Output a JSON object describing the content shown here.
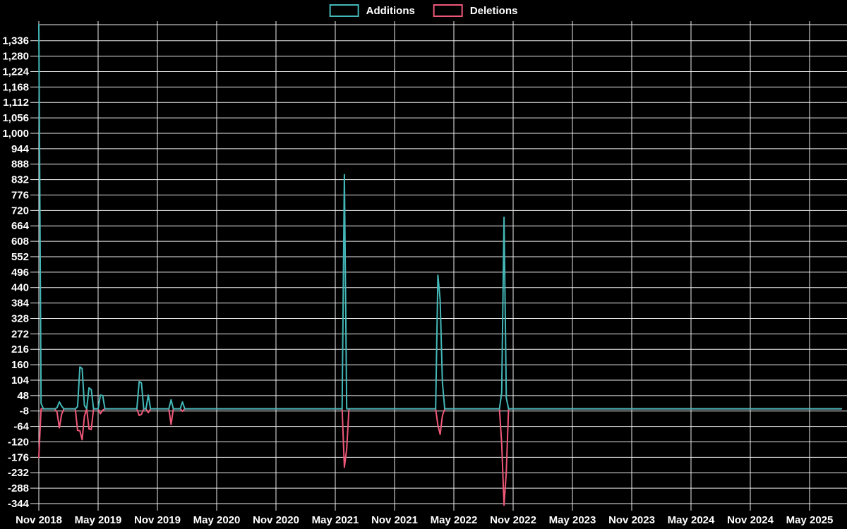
{
  "page": {
    "background": "#000000",
    "text_color": "#ffffff",
    "grid_color": "#ededed"
  },
  "legend": {
    "position": "top-center",
    "items": [
      {
        "label": "Additions",
        "color": "#44b8b8"
      },
      {
        "label": "Deletions",
        "color": "#ef5878"
      }
    ]
  },
  "chart_data": {
    "type": "line",
    "title": "",
    "legend_position": "top",
    "grid": "both",
    "background": "#000000",
    "baseline_value": 0,
    "default_value": 0,
    "x_axis": {
      "interval": "6 months",
      "tick_labels": [
        "Nov 2018",
        "May 2019",
        "Nov 2019",
        "May 2020",
        "Nov 2020",
        "May 2021",
        "Nov 2021",
        "May 2022",
        "Nov 2022",
        "May 2023",
        "Nov 2023",
        "May 2024",
        "Nov 2024",
        "May 2025"
      ]
    },
    "y_axis": {
      "min": -344,
      "max": 1392,
      "tick_step": 56,
      "tick_max": 1336,
      "tick_min": -344,
      "tick_labels": [
        "1,336",
        "1,280",
        "1,224",
        "1,168",
        "1,112",
        "1,056",
        "1,000",
        "944",
        "888",
        "832",
        "776",
        "720",
        "664",
        "608",
        "552",
        "496",
        "440",
        "384",
        "328",
        "272",
        "216",
        "160",
        "104",
        "48",
        "-8",
        "-64",
        "-120",
        "-176",
        "-232",
        "-288",
        "-344"
      ]
    },
    "timeline": {
      "start_date": "2018-11-04",
      "end_date": "2025-08-03",
      "interval_days": 7,
      "weeks": 353
    },
    "series": [
      {
        "name": "Additions",
        "color": "#44b8b8",
        "points": [
          {
            "week": 0,
            "date": "2018-11-04",
            "value": 1500,
            "clipped_at_axis_max": true
          },
          {
            "week": 1,
            "date": "2018-11-11",
            "value": 20
          },
          {
            "week": 8,
            "date": "2018-12-30",
            "value": 4
          },
          {
            "week": 9,
            "date": "2019-01-06",
            "value": 25
          },
          {
            "week": 10,
            "date": "2019-01-13",
            "value": 10
          },
          {
            "week": 17,
            "date": "2019-03-03",
            "value": 8
          },
          {
            "week": 18,
            "date": "2019-03-10",
            "value": 152
          },
          {
            "week": 19,
            "date": "2019-03-17",
            "value": 146
          },
          {
            "week": 20,
            "date": "2019-03-24",
            "value": 12
          },
          {
            "week": 22,
            "date": "2019-04-07",
            "value": 76
          },
          {
            "week": 23,
            "date": "2019-04-14",
            "value": 70
          },
          {
            "week": 27,
            "date": "2019-05-12",
            "value": 50
          },
          {
            "week": 28,
            "date": "2019-05-19",
            "value": 48
          },
          {
            "week": 44,
            "date": "2019-09-08",
            "value": 99
          },
          {
            "week": 45,
            "date": "2019-09-15",
            "value": 94
          },
          {
            "week": 48,
            "date": "2019-10-06",
            "value": 50
          },
          {
            "week": 58,
            "date": "2019-12-15",
            "value": 33
          },
          {
            "week": 63,
            "date": "2020-01-19",
            "value": 25
          },
          {
            "week": 134,
            "date": "2021-05-30",
            "value": 850
          },
          {
            "week": 175,
            "date": "2022-03-13",
            "value": 485
          },
          {
            "week": 176,
            "date": "2022-03-20",
            "value": 395
          },
          {
            "week": 177,
            "date": "2022-03-27",
            "value": 95
          },
          {
            "week": 203,
            "date": "2022-09-25",
            "value": 60
          },
          {
            "week": 204,
            "date": "2022-10-02",
            "value": 695
          },
          {
            "week": 205,
            "date": "2022-10-09",
            "value": 40
          }
        ]
      },
      {
        "name": "Deletions",
        "color": "#ef5878",
        "points": [
          {
            "week": 0,
            "date": "2018-11-04",
            "value": -176
          },
          {
            "week": 8,
            "date": "2018-12-30",
            "value": -12
          },
          {
            "week": 9,
            "date": "2019-01-06",
            "value": -69
          },
          {
            "week": 10,
            "date": "2019-01-13",
            "value": -20
          },
          {
            "week": 17,
            "date": "2019-03-03",
            "value": -78
          },
          {
            "week": 18,
            "date": "2019-03-10",
            "value": -80
          },
          {
            "week": 19,
            "date": "2019-03-17",
            "value": -112
          },
          {
            "week": 20,
            "date": "2019-03-24",
            "value": -27
          },
          {
            "week": 22,
            "date": "2019-04-07",
            "value": -73
          },
          {
            "week": 23,
            "date": "2019-04-14",
            "value": -75
          },
          {
            "week": 27,
            "date": "2019-05-12",
            "value": -18
          },
          {
            "week": 28,
            "date": "2019-05-19",
            "value": -5
          },
          {
            "week": 44,
            "date": "2019-09-08",
            "value": -24
          },
          {
            "week": 45,
            "date": "2019-09-15",
            "value": -20
          },
          {
            "week": 48,
            "date": "2019-10-06",
            "value": -14
          },
          {
            "week": 58,
            "date": "2019-12-15",
            "value": -57
          },
          {
            "week": 63,
            "date": "2020-01-19",
            "value": -9
          },
          {
            "week": 134,
            "date": "2021-05-30",
            "value": -212
          },
          {
            "week": 135,
            "date": "2021-06-06",
            "value": -146
          },
          {
            "week": 175,
            "date": "2022-03-13",
            "value": -60
          },
          {
            "week": 176,
            "date": "2022-03-20",
            "value": -93
          },
          {
            "week": 177,
            "date": "2022-03-27",
            "value": -25
          },
          {
            "week": 203,
            "date": "2022-09-25",
            "value": -127
          },
          {
            "week": 204,
            "date": "2022-10-02",
            "value": -350
          },
          {
            "week": 205,
            "date": "2022-10-09",
            "value": -230
          }
        ]
      }
    ]
  }
}
